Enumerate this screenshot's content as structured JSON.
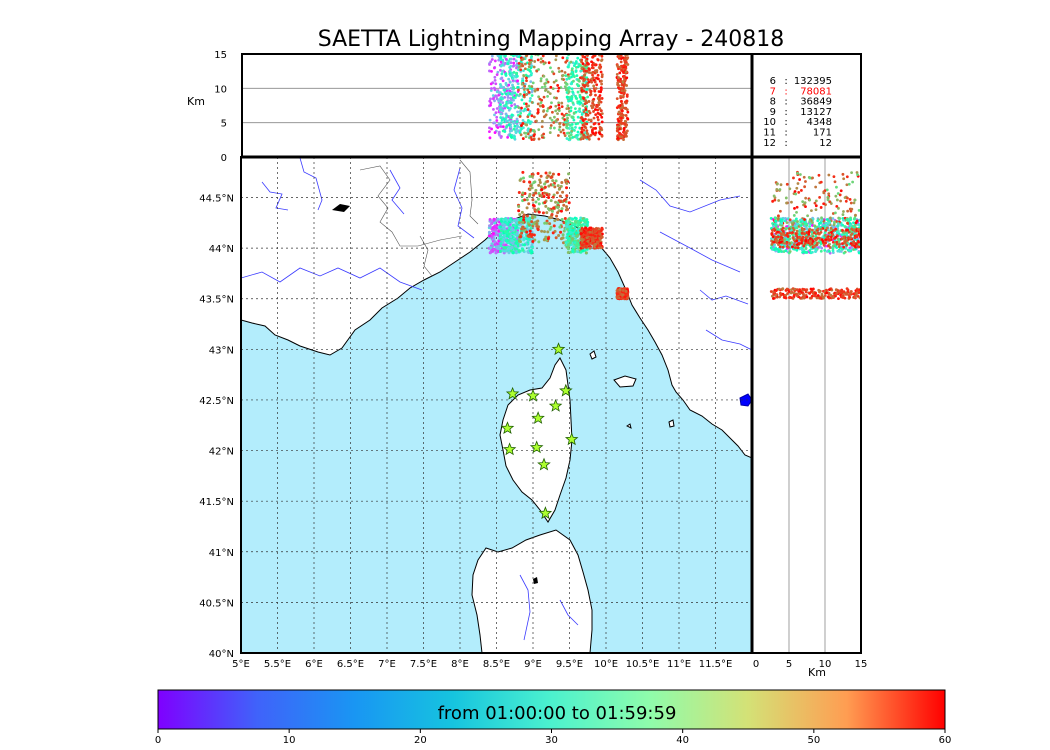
{
  "title": "SAETTA Lightning Mapping Array - 240818",
  "colorbar_label": "from 01:00:00 to 01:59:59",
  "colors": {
    "sea": "#b3edfc",
    "land": "#ffffff",
    "coast": "#000000",
    "rivers": "#3b3bff",
    "station_fill": "#adff2f",
    "highlight_count": "#ff0000"
  },
  "chart_data": [
    {
      "panel": "map",
      "type": "scatter",
      "xlabel": "",
      "ylabel": "",
      "xlim": [
        5.0,
        12.0
      ],
      "ylim": [
        40.0,
        44.9
      ],
      "x_ticks": [
        "5°E",
        "5.5°E",
        "6°E",
        "6.5°E",
        "7°E",
        "7.5°E",
        "8°E",
        "8.5°E",
        "9°E",
        "9.5°E",
        "10°E",
        "10.5°E",
        "11°E",
        "11.5°E"
      ],
      "y_ticks": [
        "40°N",
        "40.5°N",
        "41°N",
        "41.5°N",
        "42°N",
        "42.5°N",
        "43°N",
        "43.5°N",
        "44°N",
        "44.5°N"
      ],
      "grid": true,
      "stations": [
        {
          "lon": 9.35,
          "lat": 43.0
        },
        {
          "lon": 8.72,
          "lat": 42.56
        },
        {
          "lon": 9.0,
          "lat": 42.54
        },
        {
          "lon": 9.45,
          "lat": 42.59
        },
        {
          "lon": 9.31,
          "lat": 42.44
        },
        {
          "lon": 9.07,
          "lat": 42.32
        },
        {
          "lon": 8.65,
          "lat": 42.22
        },
        {
          "lon": 9.53,
          "lat": 42.11
        },
        {
          "lon": 8.68,
          "lat": 42.01
        },
        {
          "lon": 9.05,
          "lat": 42.03
        },
        {
          "lon": 9.15,
          "lat": 41.86
        },
        {
          "lon": 9.17,
          "lat": 41.38
        }
      ],
      "lightning_clusters": [
        {
          "lon_range": [
            8.4,
            8.8
          ],
          "lat_range": [
            43.95,
            44.3
          ],
          "time_min_range": [
            0,
            20
          ]
        },
        {
          "lon_range": [
            8.55,
            9.0
          ],
          "lat_range": [
            43.95,
            44.3
          ],
          "time_min_range": [
            15,
            35
          ]
        },
        {
          "lon_range": [
            8.8,
            9.5
          ],
          "lat_range": [
            44.05,
            44.75
          ],
          "time_min_range": [
            40,
            60
          ]
        },
        {
          "lon_range": [
            9.45,
            9.75
          ],
          "lat_range": [
            43.95,
            44.3
          ],
          "time_min_range": [
            20,
            45
          ]
        },
        {
          "lon_range": [
            9.65,
            9.95
          ],
          "lat_range": [
            44.0,
            44.2
          ],
          "time_min_range": [
            50,
            60
          ]
        },
        {
          "lon_range": [
            10.15,
            10.3
          ],
          "lat_range": [
            43.5,
            43.6
          ],
          "time_min_range": [
            50,
            60
          ]
        }
      ]
    },
    {
      "panel": "altitude-longitude",
      "type": "scatter",
      "ylabel": "Km",
      "ylim": [
        0,
        15
      ],
      "y_ticks": [
        "0",
        "5",
        "10",
        "15"
      ],
      "grid": true,
      "lon_range": [
        8.35,
        10.35
      ],
      "alt_range": [
        2.5,
        15
      ]
    },
    {
      "panel": "latitude-altitude",
      "type": "scatter",
      "xlabel": "Km",
      "xlim": [
        0,
        15
      ],
      "x_ticks": [
        "0",
        "5",
        "10",
        "15"
      ],
      "grid": true,
      "lat_range": [
        43.5,
        44.75
      ],
      "alt_range": [
        2.5,
        15
      ]
    },
    {
      "panel": "station-counts",
      "type": "table",
      "rows": [
        {
          "stations": "6",
          "count": "132395",
          "highlight": false
        },
        {
          "stations": "7",
          "count": "78081",
          "highlight": true
        },
        {
          "stations": "8",
          "count": "36849",
          "highlight": false
        },
        {
          "stations": "9",
          "count": "13127",
          "highlight": false
        },
        {
          "stations": "10",
          "count": "4348",
          "highlight": false
        },
        {
          "stations": "11",
          "count": "171",
          "highlight": false
        },
        {
          "stations": "12",
          "count": "12",
          "highlight": false
        }
      ]
    },
    {
      "panel": "colorbar",
      "type": "heatmap",
      "colormap": "rainbow",
      "range": [
        0,
        60
      ],
      "ticks": [
        "0",
        "10",
        "20",
        "30",
        "40",
        "50",
        "60"
      ]
    }
  ]
}
